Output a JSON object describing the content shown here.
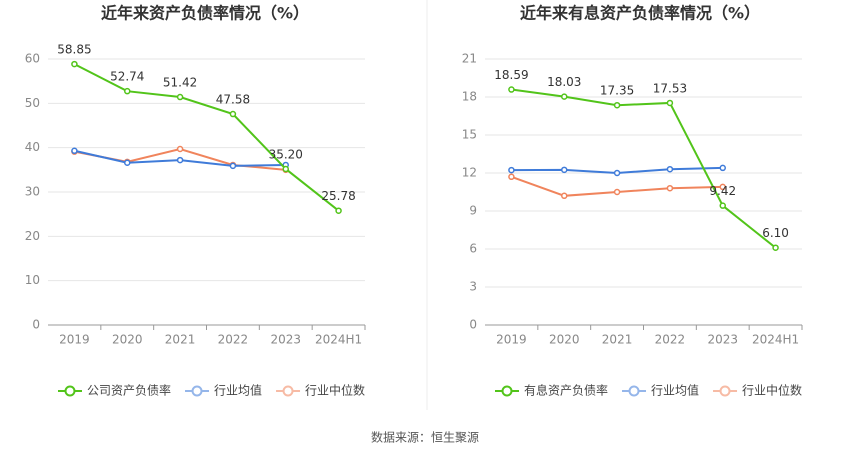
{
  "chart_data": [
    {
      "type": "line",
      "title": "近年来资产负债率情况（%）",
      "categories": [
        "2019",
        "2020",
        "2021",
        "2022",
        "2023",
        "2024H1"
      ],
      "ylim": [
        0,
        60
      ],
      "yticks": [
        0,
        10,
        20,
        30,
        40,
        50,
        60
      ],
      "grid": true,
      "series": [
        {
          "name": "公司资产负债率",
          "color": "#52c41a",
          "values": [
            58.85,
            52.74,
            51.42,
            47.58,
            35.2,
            25.78
          ],
          "value_labels": [
            "58.85",
            "52.74",
            "51.42",
            "47.58",
            "35.20",
            "25.78"
          ]
        },
        {
          "name": "行业均值",
          "color": "#3f7bd9",
          "values": [
            39.3,
            36.6,
            37.2,
            35.9,
            36.1,
            null
          ]
        },
        {
          "name": "行业中位数",
          "color": "#f0845c",
          "values": [
            39.1,
            36.8,
            39.7,
            36.1,
            35.0,
            null
          ]
        }
      ]
    },
    {
      "type": "line",
      "title": "近年来有息资产负债率情况（%）",
      "categories": [
        "2019",
        "2020",
        "2021",
        "2022",
        "2023",
        "2024H1"
      ],
      "ylim": [
        0,
        21
      ],
      "yticks": [
        0,
        3,
        6,
        9,
        12,
        15,
        18,
        21
      ],
      "grid": true,
      "series": [
        {
          "name": "有息资产负债率",
          "color": "#52c41a",
          "values": [
            18.59,
            18.03,
            17.35,
            17.53,
            9.42,
            6.1
          ],
          "value_labels": [
            "18.59",
            "18.03",
            "17.35",
            "17.53",
            "9.42",
            "6.10"
          ]
        },
        {
          "name": "行业均值",
          "color": "#3f7bd9",
          "values": [
            12.23,
            12.25,
            12.0,
            12.3,
            12.4,
            null
          ]
        },
        {
          "name": "行业中位数",
          "color": "#f0845c",
          "values": [
            11.7,
            10.2,
            10.5,
            10.8,
            10.9,
            null
          ]
        }
      ]
    }
  ],
  "source": "数据来源：恒生聚源"
}
